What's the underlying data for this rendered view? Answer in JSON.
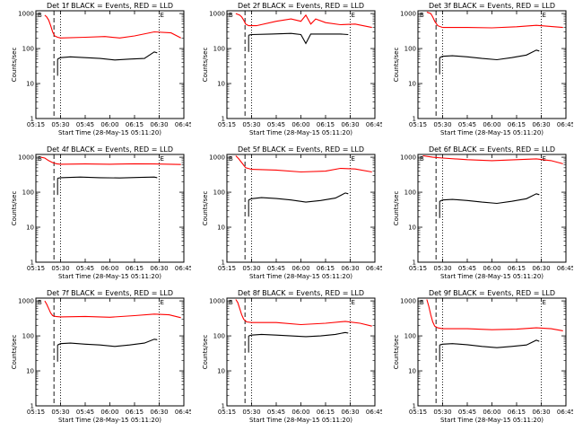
{
  "chart_data": [
    {
      "type": "line",
      "title": "Det 1f BLACK = Events, RED = LLD",
      "xlabel": "Start Time (28-May-15 05:11:20)",
      "ylabel": "Counts/sec",
      "yscale": "log",
      "ylim": [
        1,
        1200
      ],
      "xticks": [
        "05:15",
        "05:30",
        "05:45",
        "06:00",
        "06:15",
        "06:30",
        "06:45"
      ],
      "yticks": [
        "1",
        "10",
        "100",
        "1000"
      ],
      "markers": [
        "B",
        "E"
      ],
      "vlines": {
        "dashed": "05:26",
        "dotted": [
          "05:30",
          "06:30",
          "06:45"
        ]
      },
      "series": [
        {
          "color": "#ff0000",
          "x": [
            5.34,
            5.36,
            5.38,
            5.4,
            5.42,
            5.44,
            5.47,
            5.5,
            5.75,
            5.95,
            6.1,
            6.25,
            6.45,
            6.62,
            6.72
          ],
          "values": [
            900,
            800,
            650,
            450,
            300,
            230,
            210,
            200,
            210,
            220,
            200,
            230,
            300,
            280,
            200
          ]
        },
        {
          "color": "#000000",
          "x": [
            5.47,
            5.5,
            5.6,
            5.75,
            5.9,
            6.05,
            6.2,
            6.35,
            6.45,
            6.48
          ],
          "values": [
            50,
            55,
            58,
            55,
            52,
            47,
            50,
            52,
            80,
            75
          ]
        }
      ]
    },
    {
      "type": "line",
      "title": "Det 2f BLACK = Events, RED = LLD",
      "xlabel": "Start Time (28-May-15 05:11:20)",
      "ylabel": "Counts/sec",
      "yscale": "log",
      "ylim": [
        1,
        1200
      ],
      "xticks": [
        "05:15",
        "05:30",
        "05:45",
        "06:00",
        "06:15",
        "06:30",
        "06:45"
      ],
      "yticks": [
        "1",
        "10",
        "100",
        "1000"
      ],
      "markers": [
        "B",
        "E"
      ],
      "vlines": {
        "dashed": "05:26",
        "dotted": [
          "05:30",
          "06:30",
          "06:45"
        ]
      },
      "series": [
        {
          "color": "#ff0000",
          "x": [
            5.34,
            5.36,
            5.38,
            5.4,
            5.42,
            5.44,
            5.47,
            5.55,
            5.75,
            5.9,
            6.0,
            6.05,
            6.1,
            6.15,
            6.25,
            6.4,
            6.55,
            6.72
          ],
          "values": [
            1000,
            950,
            900,
            800,
            650,
            500,
            450,
            450,
            600,
            700,
            600,
            900,
            500,
            700,
            550,
            480,
            500,
            400
          ]
        },
        {
          "color": "#000000",
          "x": [
            5.47,
            5.5,
            5.7,
            5.9,
            6.0,
            6.05,
            6.1,
            6.25,
            6.4,
            6.48
          ],
          "values": [
            240,
            250,
            260,
            270,
            250,
            140,
            260,
            260,
            260,
            250
          ]
        }
      ]
    },
    {
      "type": "line",
      "title": "Det 3f BLACK = Events, RED = LLD",
      "xlabel": "Start Time (28-May-15 05:11:20)",
      "ylabel": "Counts/sec",
      "yscale": "log",
      "ylim": [
        1,
        1200
      ],
      "xticks": [
        "05:15",
        "05:30",
        "05:45",
        "06:00",
        "06:15",
        "06:30",
        "06:45"
      ],
      "yticks": [
        "1",
        "10",
        "100",
        "1000"
      ],
      "markers": [
        "B",
        "E"
      ],
      "vlines": {
        "dashed": "05:26",
        "dotted": [
          "05:30",
          "06:30",
          "06:45"
        ]
      },
      "series": [
        {
          "color": "#ff0000",
          "x": [
            5.34,
            5.36,
            5.38,
            5.4,
            5.42,
            5.45,
            5.5,
            5.75,
            6.0,
            6.25,
            6.45,
            6.72
          ],
          "values": [
            1100,
            1050,
            1000,
            800,
            600,
            450,
            400,
            400,
            390,
            420,
            460,
            400
          ]
        },
        {
          "color": "#000000",
          "x": [
            5.47,
            5.5,
            5.6,
            5.75,
            5.9,
            6.05,
            6.2,
            6.35,
            6.45,
            6.48
          ],
          "values": [
            55,
            60,
            62,
            58,
            52,
            48,
            55,
            65,
            90,
            85
          ]
        }
      ]
    },
    {
      "type": "line",
      "title": "Det 4f BLACK = Events, RED = LLD",
      "xlabel": "Start Time (28-May-15 05:11:20)",
      "ylabel": "Counts/sec",
      "yscale": "log",
      "ylim": [
        1,
        1200
      ],
      "xticks": [
        "05:15",
        "05:30",
        "05:45",
        "06:00",
        "06:15",
        "06:30",
        "06:45"
      ],
      "yticks": [
        "1",
        "10",
        "100",
        "1000"
      ],
      "markers": [
        "B",
        "E"
      ],
      "vlines": {
        "dashed": "05:26",
        "dotted": [
          "05:30",
          "06:30",
          "06:45"
        ]
      },
      "series": [
        {
          "color": "#ff0000",
          "x": [
            5.3,
            5.34,
            5.38,
            5.42,
            5.46,
            5.5,
            5.75,
            6.0,
            6.25,
            6.45,
            6.72
          ],
          "values": [
            1000,
            950,
            800,
            700,
            650,
            630,
            640,
            630,
            650,
            640,
            620
          ]
        },
        {
          "color": "#000000",
          "x": [
            5.47,
            5.5,
            5.7,
            5.9,
            6.1,
            6.3,
            6.45,
            6.48
          ],
          "values": [
            250,
            260,
            270,
            260,
            255,
            265,
            270,
            260
          ]
        }
      ]
    },
    {
      "type": "line",
      "title": "Det 5f BLACK = Events, RED = LLD",
      "xlabel": "Start Time (28-May-15 05:11:20)",
      "ylabel": "Counts/sec",
      "yscale": "log",
      "ylim": [
        1,
        1200
      ],
      "xticks": [
        "05:15",
        "05:30",
        "05:45",
        "06:00",
        "06:15",
        "06:30",
        "06:45"
      ],
      "yticks": [
        "1",
        "10",
        "100",
        "1000"
      ],
      "markers": [
        "B",
        "E"
      ],
      "vlines": {
        "dashed": "05:26",
        "dotted": [
          "05:30",
          "06:30",
          "06:45"
        ]
      },
      "series": [
        {
          "color": "#ff0000",
          "x": [
            5.34,
            5.37,
            5.4,
            5.44,
            5.5,
            5.75,
            6.0,
            6.25,
            6.4,
            6.55,
            6.72
          ],
          "values": [
            1100,
            900,
            700,
            500,
            450,
            430,
            380,
            400,
            480,
            460,
            380
          ]
        },
        {
          "color": "#000000",
          "x": [
            5.47,
            5.5,
            5.6,
            5.75,
            5.9,
            6.05,
            6.2,
            6.35,
            6.45,
            6.48
          ],
          "values": [
            60,
            65,
            70,
            66,
            60,
            52,
            58,
            68,
            95,
            90
          ]
        }
      ]
    },
    {
      "type": "line",
      "title": "Det 6f BLACK = Events, RED = LLD",
      "xlabel": "Start Time (28-May-15 05:11:20)",
      "ylabel": "Counts/sec",
      "yscale": "log",
      "ylim": [
        1,
        1200
      ],
      "xticks": [
        "05:15",
        "05:30",
        "05:45",
        "06:00",
        "06:15",
        "06:30",
        "06:45"
      ],
      "yticks": [
        "1",
        "10",
        "100",
        "1000"
      ],
      "markers": [
        "B",
        "E"
      ],
      "vlines": {
        "dashed": "05:26",
        "dotted": [
          "05:30",
          "06:30",
          "06:45"
        ]
      },
      "series": [
        {
          "color": "#ff0000",
          "x": [
            5.3,
            5.4,
            5.5,
            5.75,
            6.0,
            6.25,
            6.45,
            6.6,
            6.72
          ],
          "values": [
            1100,
            1000,
            950,
            850,
            800,
            850,
            900,
            800,
            650
          ]
        },
        {
          "color": "#000000",
          "x": [
            5.47,
            5.5,
            5.6,
            5.75,
            5.9,
            6.05,
            6.2,
            6.35,
            6.45,
            6.48
          ],
          "values": [
            55,
            60,
            62,
            58,
            52,
            48,
            55,
            65,
            90,
            85
          ]
        }
      ]
    },
    {
      "type": "line",
      "title": "Det 7f BLACK = Events, RED = LLD",
      "xlabel": "Start Time (28-May-15 05:11:20)",
      "ylabel": "Counts/sec",
      "yscale": "log",
      "ylim": [
        1,
        1200
      ],
      "xticks": [
        "05:15",
        "05:30",
        "05:45",
        "06:00",
        "06:15",
        "06:30",
        "06:45"
      ],
      "yticks": [
        "1",
        "10",
        "100",
        "1000"
      ],
      "markers": [
        "B",
        "E"
      ],
      "vlines": {
        "dashed": "05:26",
        "dotted": [
          "05:30",
          "06:30",
          "06:45"
        ]
      },
      "series": [
        {
          "color": "#ff0000",
          "x": [
            5.34,
            5.36,
            5.38,
            5.4,
            5.42,
            5.45,
            5.5,
            5.75,
            6.0,
            6.25,
            6.45,
            6.6,
            6.72
          ],
          "values": [
            1000,
            800,
            600,
            450,
            380,
            360,
            350,
            360,
            340,
            380,
            420,
            400,
            330
          ]
        },
        {
          "color": "#000000",
          "x": [
            5.47,
            5.5,
            5.6,
            5.75,
            5.9,
            6.05,
            6.2,
            6.35,
            6.45,
            6.48
          ],
          "values": [
            55,
            60,
            62,
            58,
            55,
            50,
            55,
            62,
            80,
            78
          ]
        }
      ]
    },
    {
      "type": "line",
      "title": "Det 8f BLACK = Events, RED = LLD",
      "xlabel": "Start Time (28-May-15 05:11:20)",
      "ylabel": "Counts/sec",
      "yscale": "log",
      "ylim": [
        1,
        1200
      ],
      "xticks": [
        "05:15",
        "05:30",
        "05:45",
        "06:00",
        "06:15",
        "06:30",
        "06:45"
      ],
      "yticks": [
        "1",
        "10",
        "100",
        "1000"
      ],
      "markers": [
        "B",
        "E"
      ],
      "vlines": {
        "dashed": "05:26",
        "dotted": [
          "05:30",
          "06:30",
          "06:45"
        ]
      },
      "series": [
        {
          "color": "#ff0000",
          "x": [
            5.34,
            5.36,
            5.38,
            5.4,
            5.42,
            5.45,
            5.5,
            5.75,
            6.0,
            6.25,
            6.45,
            6.6,
            6.72
          ],
          "values": [
            1100,
            900,
            600,
            400,
            300,
            250,
            240,
            240,
            210,
            230,
            260,
            230,
            190
          ]
        },
        {
          "color": "#000000",
          "x": [
            5.47,
            5.5,
            5.6,
            5.75,
            5.9,
            6.05,
            6.2,
            6.35,
            6.45,
            6.48
          ],
          "values": [
            100,
            105,
            110,
            105,
            100,
            95,
            100,
            110,
            125,
            120
          ]
        }
      ]
    },
    {
      "type": "line",
      "title": "Det 9f BLACK = Events, RED = LLD",
      "xlabel": "Start Time (28-May-15 05:11:20)",
      "ylabel": "Counts/sec",
      "yscale": "log",
      "ylim": [
        1,
        1200
      ],
      "xticks": [
        "05:15",
        "05:30",
        "05:45",
        "06:00",
        "06:15",
        "06:30",
        "06:45"
      ],
      "yticks": [
        "1",
        "10",
        "100",
        "1000"
      ],
      "markers": [
        "B",
        "E"
      ],
      "vlines": {
        "dashed": "05:26",
        "dotted": [
          "05:30",
          "06:30",
          "06:45"
        ]
      },
      "series": [
        {
          "color": "#ff0000",
          "x": [
            5.34,
            5.36,
            5.38,
            5.4,
            5.42,
            5.45,
            5.5,
            5.75,
            6.0,
            6.25,
            6.45,
            6.6,
            6.72
          ],
          "values": [
            1100,
            700,
            400,
            250,
            190,
            170,
            160,
            160,
            150,
            155,
            170,
            160,
            140
          ]
        },
        {
          "color": "#000000",
          "x": [
            5.47,
            5.5,
            5.6,
            5.75,
            5.9,
            6.05,
            6.2,
            6.35,
            6.45,
            6.48
          ],
          "values": [
            55,
            58,
            60,
            56,
            50,
            46,
            50,
            55,
            75,
            70
          ]
        }
      ]
    }
  ]
}
